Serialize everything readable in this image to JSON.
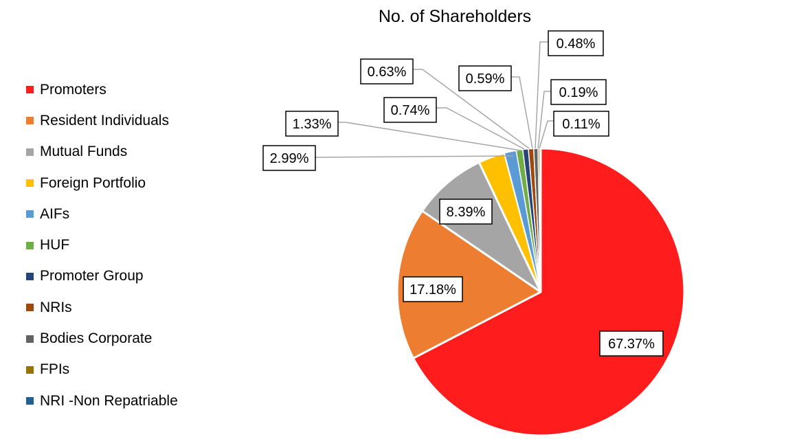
{
  "chart_data": {
    "type": "pie",
    "title": "No. of Shareholders",
    "legend_position": "left",
    "slices": [
      {
        "label": "Promoters",
        "value": 67.37,
        "display": "67.37%",
        "color": "#FF1C1C"
      },
      {
        "label": "Resident Individuals",
        "value": 17.18,
        "display": "17.18%",
        "color": "#ED7D31"
      },
      {
        "label": "Mutual Funds",
        "value": 8.39,
        "display": "8.39%",
        "color": "#A5A5A5"
      },
      {
        "label": "Foreign Portfolio",
        "value": 2.99,
        "display": "2.99%",
        "color": "#FFC000"
      },
      {
        "label": "AIFs",
        "value": 1.33,
        "display": "1.33%",
        "color": "#5B9BD5"
      },
      {
        "label": "HUF",
        "value": 0.74,
        "display": "0.74%",
        "color": "#70AD47"
      },
      {
        "label": "Promoter Group",
        "value": 0.63,
        "display": "0.63%",
        "color": "#264478"
      },
      {
        "label": "NRIs",
        "value": 0.59,
        "display": "0.59%",
        "color": "#9E480E"
      },
      {
        "label": "Bodies Corporate",
        "value": 0.48,
        "display": "0.48%",
        "color": "#636363"
      },
      {
        "label": "FPIs",
        "value": 0.19,
        "display": "0.19%",
        "color": "#997300"
      },
      {
        "label": "NRI -Non Repatriable",
        "value": 0.11,
        "display": "0.11%",
        "color": "#255E91"
      }
    ]
  }
}
